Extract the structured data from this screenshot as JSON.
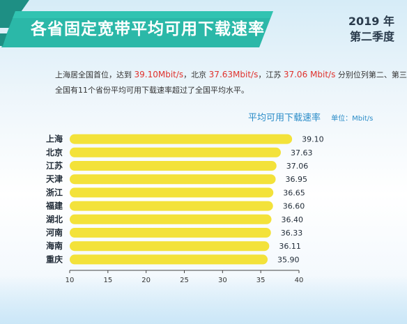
{
  "header": {
    "title": "各省固定宽带平均可用下载速率",
    "year": "2019 年",
    "quarter": "第二季度"
  },
  "summary": {
    "line1_a": "上海居全国首位，达到 ",
    "line1_v1": "39.10Mbit/s",
    "line1_b": "，北京 ",
    "line1_v2": "37.63Mbit/s",
    "line1_c": "，江苏 ",
    "line1_v3": "37.06 Mbit/s",
    "line1_d": " 分别位列第二、第三",
    "line2": "全国有11个省份平均可用下载速率超过了全国平均水平。"
  },
  "colors": {
    "bar": "#f3e23a",
    "banner": "#2bb8a8",
    "banner_dark": "#1e8f84",
    "accent_text": "#2a8cc8",
    "highlight": "#e0322d"
  },
  "chart_data": {
    "type": "bar",
    "orientation": "horizontal",
    "series_label": "平均可用下载速率",
    "unit_label": "单位：Mbit/s",
    "categories": [
      "上海",
      "北京",
      "江苏",
      "天津",
      "浙江",
      "福建",
      "湖北",
      "河南",
      "海南",
      "重庆"
    ],
    "values": [
      39.1,
      37.63,
      37.06,
      36.95,
      36.65,
      36.6,
      36.4,
      36.33,
      36.11,
      35.9
    ],
    "value_labels": [
      "39.10",
      "37.63",
      "37.06",
      "36.95",
      "36.65",
      "36.60",
      "36.40",
      "36.33",
      "36.11",
      "35.90"
    ],
    "xlim": [
      10,
      40
    ],
    "xticks": [
      10,
      15,
      20,
      25,
      30,
      35,
      40
    ],
    "grid": false
  }
}
